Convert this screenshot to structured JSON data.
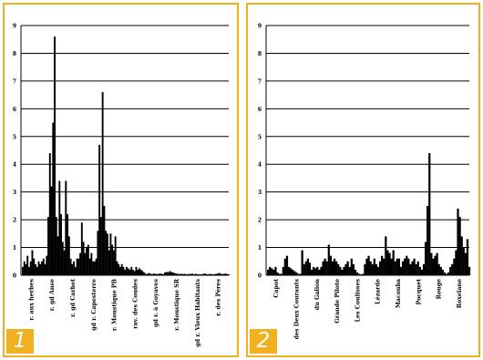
{
  "accent_color": "#f0b020",
  "bar_color": "#000000",
  "chart_data": [
    {
      "type": "bar",
      "panel_label": "1",
      "ylim": [
        0,
        9
      ],
      "yticks": [
        0,
        1,
        2,
        3,
        4,
        5,
        6,
        7,
        8,
        9
      ],
      "grid": true,
      "category_labels": [
        "r. aux herbes",
        "r. gd Anse",
        "r. gd Carbet",
        "gd r. Capesterre",
        "r. Moustique PB",
        "rav. des Coudes",
        "gd r. à Goyaves",
        "r. Moustique SR",
        "gd r. Vieux Habitants",
        "r. des Pères"
      ],
      "values": [
        0.3,
        0.5,
        0.4,
        0.7,
        0.3,
        0.5,
        0.9,
        0.6,
        0.4,
        0.3,
        0.5,
        0.4,
        0.5,
        0.6,
        0.4,
        0.7,
        2.1,
        4.4,
        3.2,
        5.5,
        8.6,
        2.1,
        1.4,
        3.4,
        2.2,
        1.2,
        0.9,
        3.4,
        2.2,
        1.4,
        0.6,
        0.4,
        0.5,
        0.3,
        0.6,
        0.6,
        0.8,
        1.9,
        1.2,
        0.8,
        1.0,
        1.1,
        0.6,
        0.8,
        0.5,
        0.5,
        0.6,
        1.6,
        4.7,
        2.1,
        6.6,
        2.5,
        1.6,
        1.5,
        0.9,
        1.5,
        1.1,
        0.9,
        1.4,
        0.5,
        0.4,
        0.3,
        0.4,
        0.3,
        0.2,
        0.3,
        0.25,
        0.2,
        0.3,
        0.2,
        0.15,
        0.3,
        0.2,
        0.25,
        0.2,
        0.15,
        0.1,
        0.05,
        0.05,
        0.08,
        0.05,
        0.04,
        0.06,
        0.05,
        0.04,
        0.05,
        0.06,
        0.05,
        0.04,
        0.1,
        0.12,
        0.1,
        0.15,
        0.12,
        0.1,
        0.08,
        0.06,
        0.05,
        0.04,
        0.05,
        0.04,
        0.05,
        0.04,
        0.03,
        0.05,
        0.04,
        0.06,
        0.03,
        0.05,
        0.04,
        0.03,
        0.04,
        0.03,
        0.05,
        0.06,
        0.04,
        0.03,
        0.05,
        0.04,
        0.03,
        0.04,
        0.05,
        0.06,
        0.08,
        0.05,
        0.04,
        0.05,
        0.06,
        0.04,
        0.03
      ]
    },
    {
      "type": "bar",
      "panel_label": "2",
      "ylim": [
        0,
        9
      ],
      "yticks": [
        0,
        1,
        2,
        3,
        4,
        5,
        6,
        7,
        8,
        9
      ],
      "grid": true,
      "category_labels": [
        "Capot",
        "des Deux Courants",
        "du Galion",
        "Grande Pilote",
        "Les Coulisses",
        "Lézarde",
        "Macouba",
        "Pocquet",
        "Rouge",
        "Roxelane"
      ],
      "values": [
        0.2,
        0.3,
        0.25,
        0.2,
        0.3,
        0.1,
        0.05,
        0.05,
        0.3,
        0.6,
        0.7,
        0.3,
        0.25,
        0.2,
        0.15,
        0.1,
        0.05,
        0.05,
        0.9,
        0.4,
        0.5,
        0.6,
        0.45,
        0.2,
        0.3,
        0.25,
        0.3,
        0.2,
        0.3,
        0.5,
        0.6,
        0.5,
        1.1,
        0.7,
        0.5,
        0.6,
        0.5,
        0.4,
        0.3,
        0.2,
        0.3,
        0.4,
        0.5,
        0.3,
        0.6,
        0.4,
        0.2,
        0.1,
        0.05,
        0.03,
        0.05,
        0.4,
        0.6,
        0.7,
        0.5,
        0.4,
        0.6,
        0.4,
        0.3,
        0.5,
        0.7,
        0.6,
        1.4,
        0.9,
        0.8,
        0.6,
        0.9,
        0.5,
        0.6,
        0.6,
        0.3,
        0.5,
        0.6,
        0.7,
        0.6,
        0.4,
        0.5,
        0.6,
        0.4,
        0.5,
        0.3,
        0.2,
        0.4,
        1.2,
        2.5,
        4.4,
        0.8,
        0.6,
        0.7,
        0.8,
        0.4,
        0.3,
        0.2,
        0.1,
        0.05,
        0.1,
        0.3,
        0.4,
        0.6,
        0.9,
        2.4,
        2.1,
        1.4,
        1.0,
        0.8,
        1.3,
        0.3
      ]
    }
  ]
}
